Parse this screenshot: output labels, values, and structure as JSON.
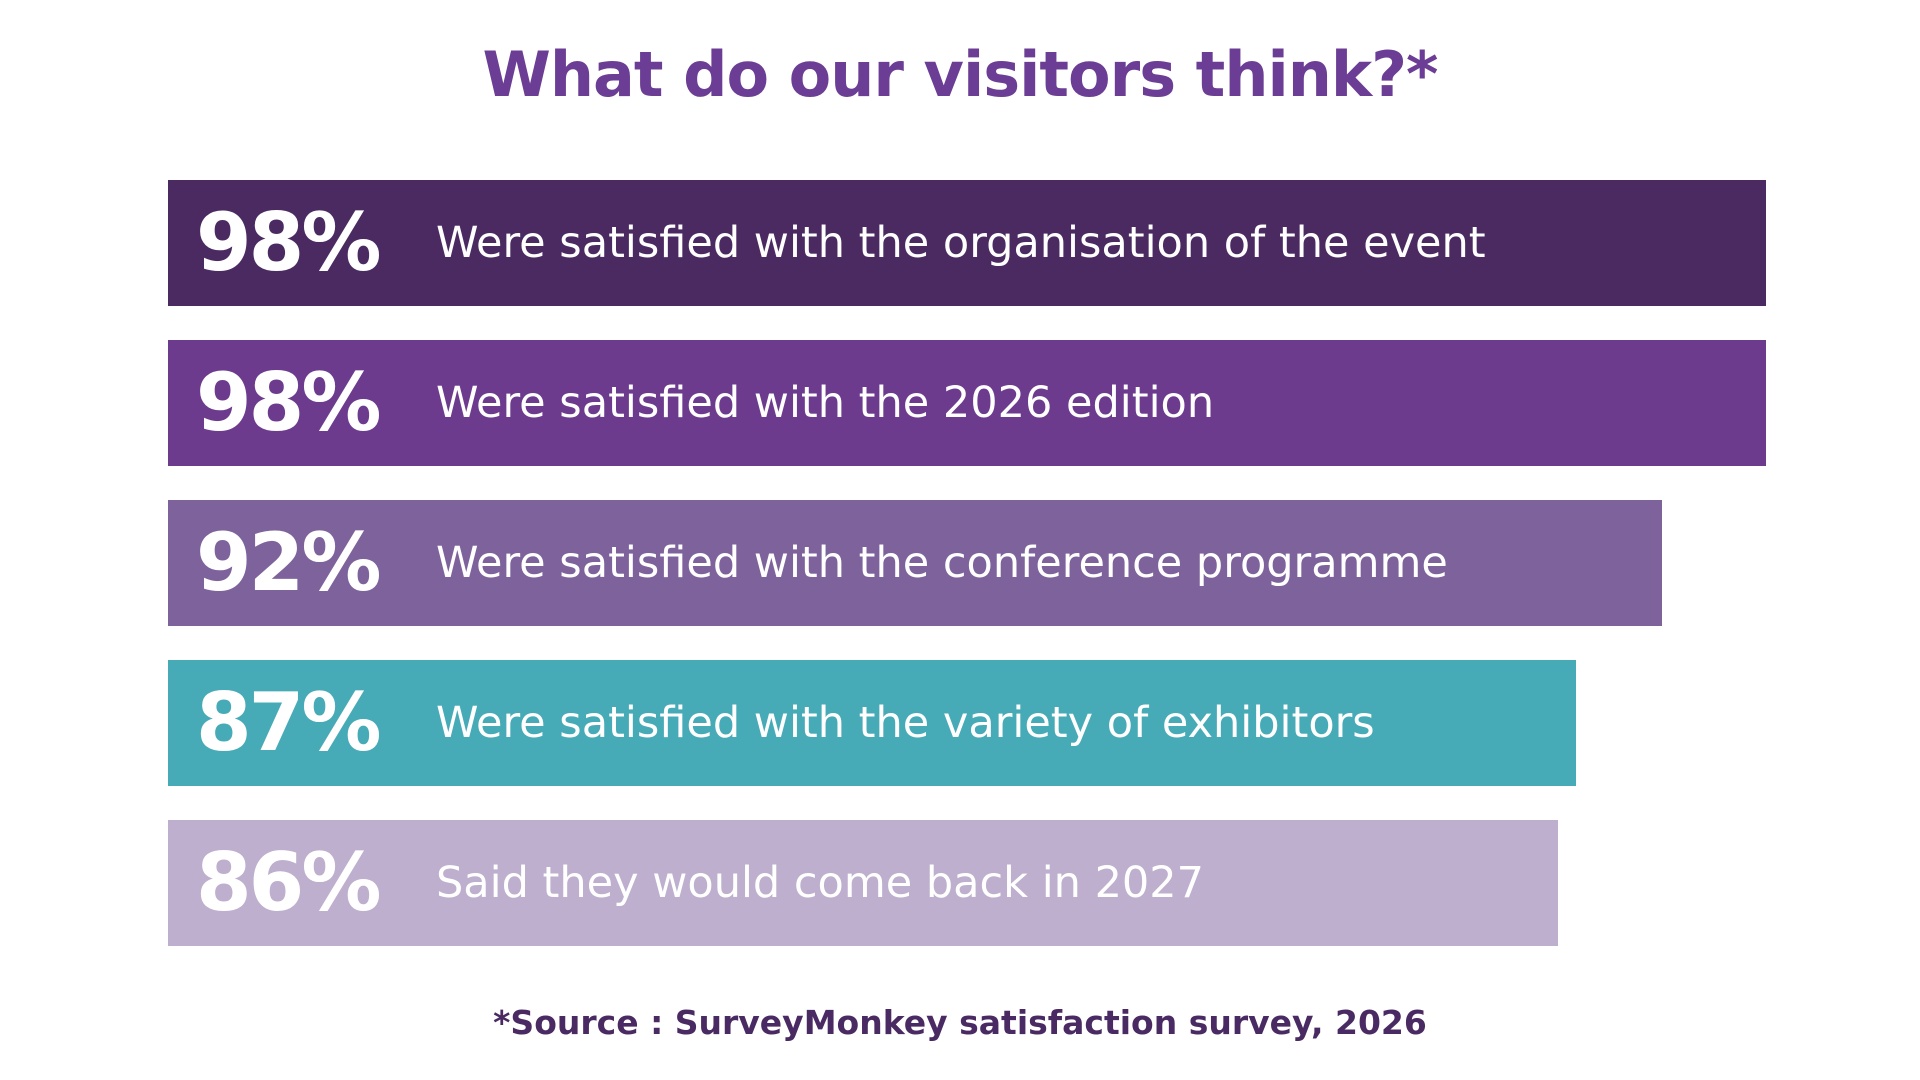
{
  "chart_data": {
    "type": "bar",
    "orientation": "horizontal",
    "title": "What do our visitors think?*",
    "categories": [
      "Were satisfied with the organisation of the event",
      "Were satisfied with the 2026 edition",
      "Were satisfied with the conference programme",
      "Were satisfied with the variety of exhibitors",
      "Said they would come back in 2027"
    ],
    "values": [
      98,
      98,
      92,
      87,
      86
    ],
    "value_labels": [
      "98%",
      "98%",
      "92%",
      "87%",
      "86%"
    ],
    "colors": [
      "#4b2a62",
      "#6d3b8e",
      "#7e629c",
      "#47abb7",
      "#bdafcd"
    ],
    "xlim": [
      0,
      100
    ],
    "grid": false,
    "footnote": "*Source : SurveyMonkey satisfaction survey, 2026"
  },
  "colors": {
    "title": "#6b3d94",
    "footnote": "#4a2a62",
    "bar_text": "#ffffff"
  }
}
